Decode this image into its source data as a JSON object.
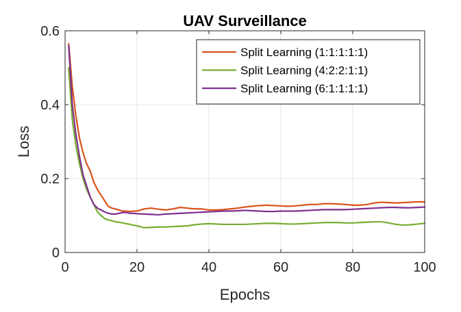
{
  "chart_data": {
    "type": "line",
    "title": "UAV Surveillance",
    "xlabel": "Epochs",
    "ylabel": "Loss",
    "xlim": [
      0,
      100
    ],
    "ylim": [
      0,
      0.6
    ],
    "xticks": [
      0,
      20,
      40,
      60,
      80,
      100
    ],
    "yticks": [
      0,
      0.2,
      0.4,
      0.6
    ],
    "xtick_labels": [
      "0",
      "20",
      "40",
      "60",
      "80",
      "100"
    ],
    "ytick_labels": [
      "0",
      "0.2",
      "0.4",
      "0.6"
    ],
    "grid": true,
    "legend_position": "top-right",
    "series": [
      {
        "name": "Split Learning (1:1:1:1:1)",
        "color": "#d95319",
        "x": [
          1,
          2,
          3,
          4,
          5,
          6,
          7,
          8,
          9,
          10,
          11,
          12,
          13,
          14,
          15,
          16,
          17,
          18,
          19,
          20,
          22,
          24,
          26,
          28,
          30,
          32,
          34,
          36,
          38,
          40,
          42,
          44,
          46,
          48,
          50,
          52,
          54,
          56,
          58,
          60,
          62,
          64,
          66,
          68,
          70,
          72,
          74,
          76,
          78,
          80,
          82,
          84,
          86,
          88,
          90,
          92,
          94,
          96,
          98,
          100
        ],
        "values": [
          0.565,
          0.45,
          0.37,
          0.31,
          0.27,
          0.24,
          0.22,
          0.19,
          0.17,
          0.155,
          0.14,
          0.125,
          0.12,
          0.118,
          0.115,
          0.112,
          0.112,
          0.111,
          0.112,
          0.112,
          0.118,
          0.12,
          0.117,
          0.115,
          0.118,
          0.122,
          0.12,
          0.118,
          0.118,
          0.115,
          0.115,
          0.116,
          0.118,
          0.12,
          0.123,
          0.125,
          0.127,
          0.128,
          0.127,
          0.126,
          0.125,
          0.126,
          0.128,
          0.13,
          0.13,
          0.132,
          0.132,
          0.131,
          0.13,
          0.128,
          0.128,
          0.13,
          0.134,
          0.136,
          0.135,
          0.134,
          0.135,
          0.136,
          0.137,
          0.137
        ]
      },
      {
        "name": "Split Learning (4:2:2:1:1)",
        "color": "#77ac30",
        "x": [
          1,
          2,
          3,
          4,
          5,
          6,
          7,
          8,
          9,
          10,
          11,
          12,
          13,
          14,
          15,
          16,
          17,
          18,
          19,
          20,
          22,
          24,
          26,
          28,
          30,
          32,
          34,
          36,
          38,
          40,
          42,
          44,
          46,
          48,
          50,
          52,
          54,
          56,
          58,
          60,
          62,
          64,
          66,
          68,
          70,
          72,
          74,
          76,
          78,
          80,
          82,
          84,
          86,
          88,
          90,
          92,
          94,
          96,
          98,
          100
        ],
        "values": [
          0.5,
          0.36,
          0.29,
          0.24,
          0.2,
          0.17,
          0.15,
          0.13,
          0.11,
          0.1,
          0.092,
          0.088,
          0.086,
          0.083,
          0.082,
          0.08,
          0.078,
          0.076,
          0.074,
          0.072,
          0.067,
          0.068,
          0.069,
          0.069,
          0.07,
          0.071,
          0.072,
          0.075,
          0.077,
          0.078,
          0.077,
          0.076,
          0.076,
          0.076,
          0.076,
          0.077,
          0.078,
          0.079,
          0.079,
          0.078,
          0.077,
          0.077,
          0.078,
          0.079,
          0.08,
          0.081,
          0.081,
          0.081,
          0.08,
          0.08,
          0.081,
          0.082,
          0.083,
          0.083,
          0.08,
          0.076,
          0.074,
          0.075,
          0.077,
          0.079
        ]
      },
      {
        "name": "Split Learning (6:1:1:1:1)",
        "color": "#7e2f8e",
        "x": [
          1,
          2,
          3,
          4,
          5,
          6,
          7,
          8,
          9,
          10,
          11,
          12,
          13,
          14,
          15,
          16,
          17,
          18,
          19,
          20,
          22,
          24,
          26,
          28,
          30,
          32,
          34,
          36,
          38,
          40,
          42,
          44,
          46,
          48,
          50,
          52,
          54,
          56,
          58,
          60,
          62,
          64,
          66,
          68,
          70,
          72,
          74,
          76,
          78,
          80,
          82,
          84,
          86,
          88,
          90,
          92,
          94,
          96,
          98,
          100
        ],
        "values": [
          0.56,
          0.4,
          0.32,
          0.26,
          0.21,
          0.18,
          0.15,
          0.13,
          0.12,
          0.115,
          0.11,
          0.106,
          0.104,
          0.104,
          0.106,
          0.108,
          0.108,
          0.106,
          0.106,
          0.105,
          0.104,
          0.103,
          0.102,
          0.104,
          0.105,
          0.106,
          0.107,
          0.108,
          0.109,
          0.11,
          0.111,
          0.112,
          0.112,
          0.113,
          0.114,
          0.113,
          0.112,
          0.111,
          0.111,
          0.112,
          0.112,
          0.112,
          0.113,
          0.114,
          0.115,
          0.116,
          0.116,
          0.116,
          0.116,
          0.117,
          0.118,
          0.119,
          0.12,
          0.121,
          0.122,
          0.122,
          0.121,
          0.121,
          0.122,
          0.123
        ]
      }
    ]
  }
}
